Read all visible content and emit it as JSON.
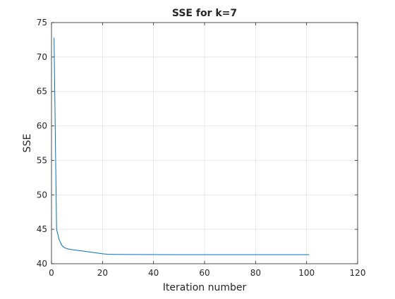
{
  "chart_data": {
    "type": "line",
    "title": "SSE for k=7",
    "xlabel": "Iteration number",
    "ylabel": "SSE",
    "xlim": [
      0,
      120
    ],
    "ylim": [
      40,
      75
    ],
    "xticks": [
      0,
      20,
      40,
      60,
      80,
      100,
      120
    ],
    "yticks": [
      40,
      45,
      50,
      55,
      60,
      65,
      70,
      75
    ],
    "xtick_labels": [
      "0",
      "20",
      "40",
      "60",
      "80",
      "100",
      "120"
    ],
    "ytick_labels": [
      "40",
      "45",
      "50",
      "55",
      "60",
      "65",
      "70",
      "75"
    ],
    "grid": true,
    "legend": false,
    "series": [
      {
        "color": "#0072BD",
        "x": [
          1,
          2,
          3,
          4,
          5,
          6,
          7,
          8,
          10,
          12,
          14,
          16,
          18,
          20,
          22,
          25,
          30,
          40,
          50,
          60,
          70,
          80,
          90,
          101
        ],
        "y": [
          72.8,
          45.0,
          43.5,
          42.7,
          42.35,
          42.2,
          42.1,
          42.05,
          41.95,
          41.85,
          41.75,
          41.65,
          41.55,
          41.45,
          41.38,
          41.35,
          41.34,
          41.33,
          41.32,
          41.32,
          41.32,
          41.32,
          41.32,
          41.32
        ]
      }
    ]
  }
}
